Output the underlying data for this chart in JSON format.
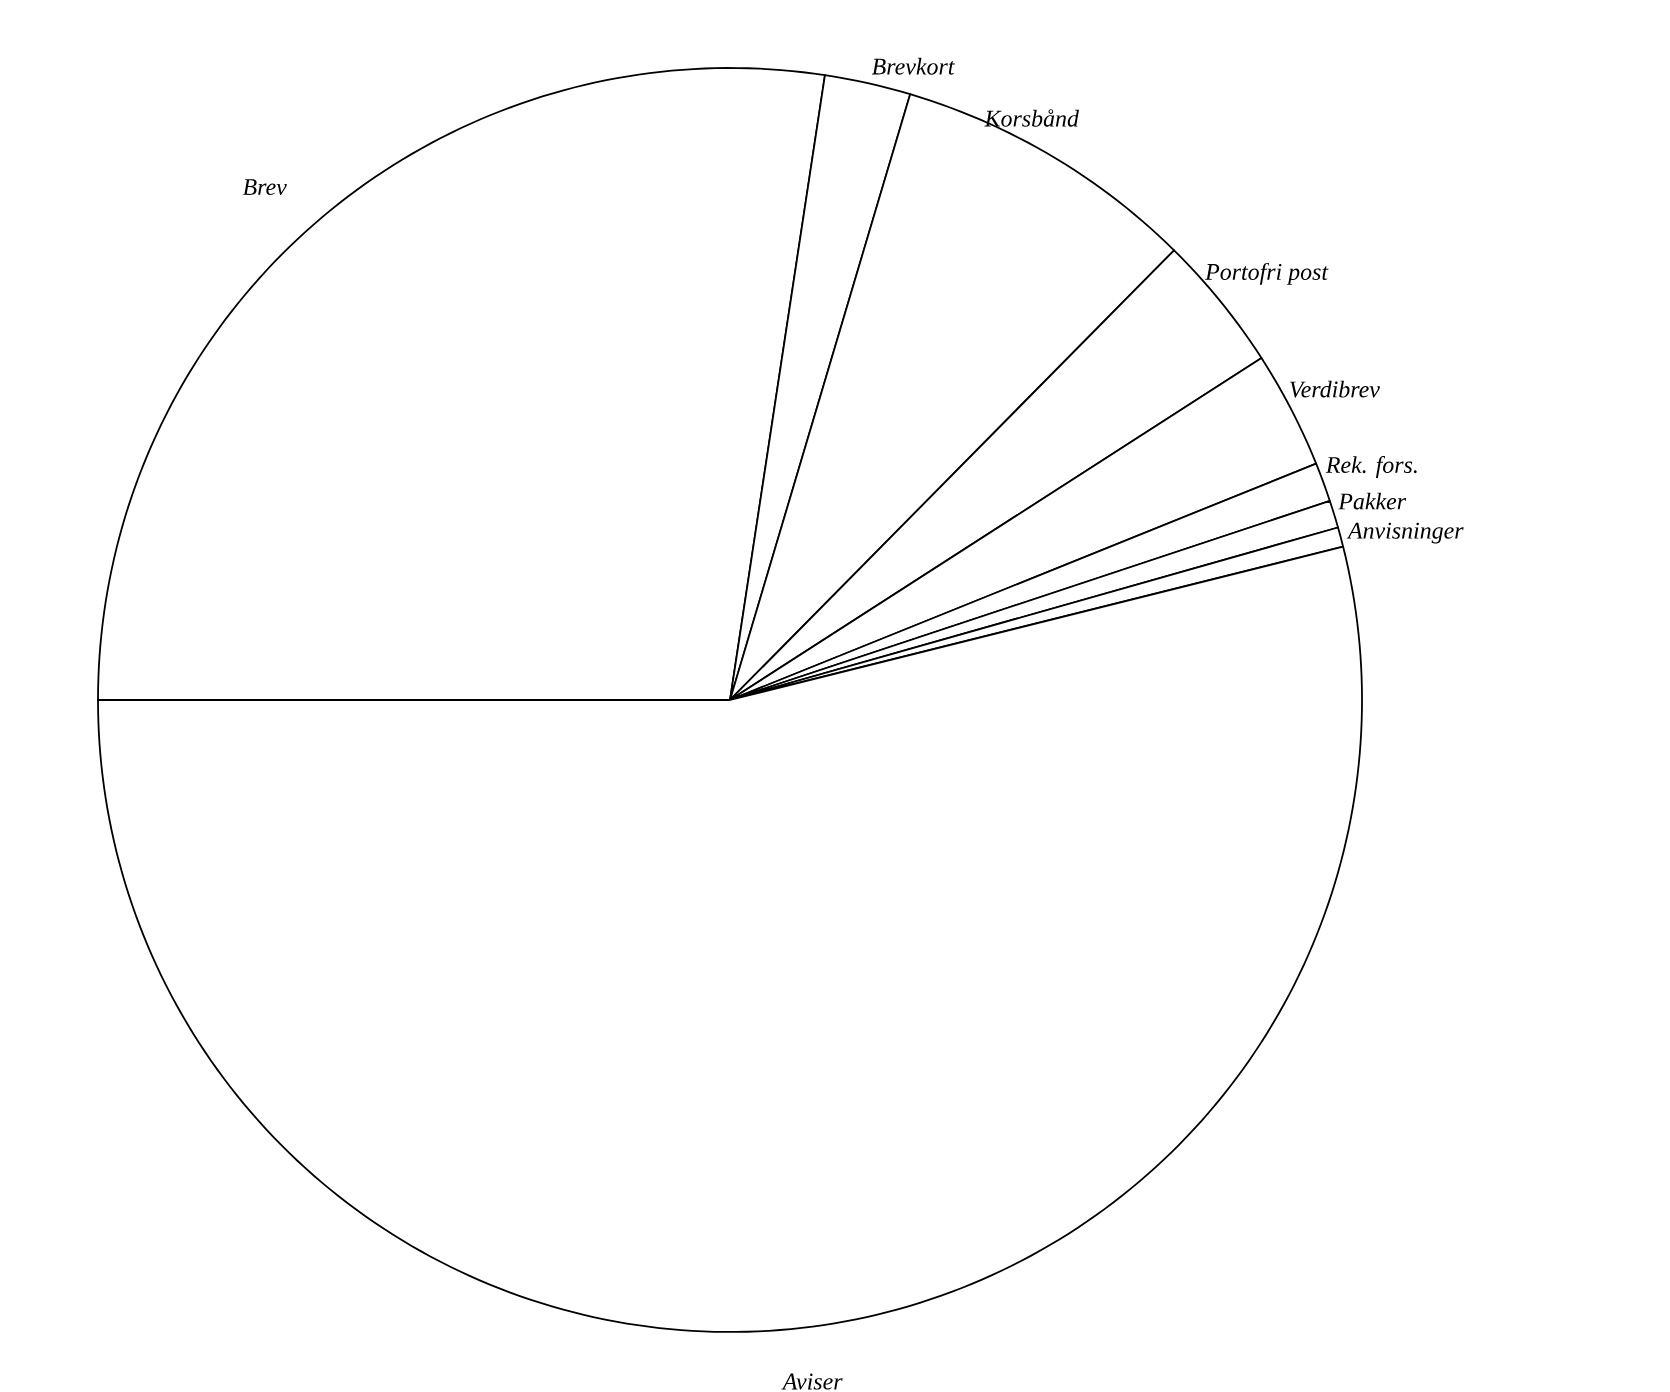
{
  "chart_data": {
    "type": "pie",
    "categories": [
      "Brev",
      "Brevkort",
      "Korsbånd",
      "Portofri post",
      "Verdibrev",
      "Rek. fors.",
      "Pakker",
      "Anvisninger",
      "Aviser"
    ],
    "values": [
      27.4,
      2.2,
      7.8,
      3.5,
      3.0,
      1.0,
      0.7,
      0.5,
      53.9
    ],
    "colors": [
      "#ffffff",
      "#ffffff",
      "#ffffff",
      "#ffffff",
      "#ffffff",
      "#ffffff",
      "#ffffff",
      "#ffffff",
      "#ffffff"
    ]
  }
}
